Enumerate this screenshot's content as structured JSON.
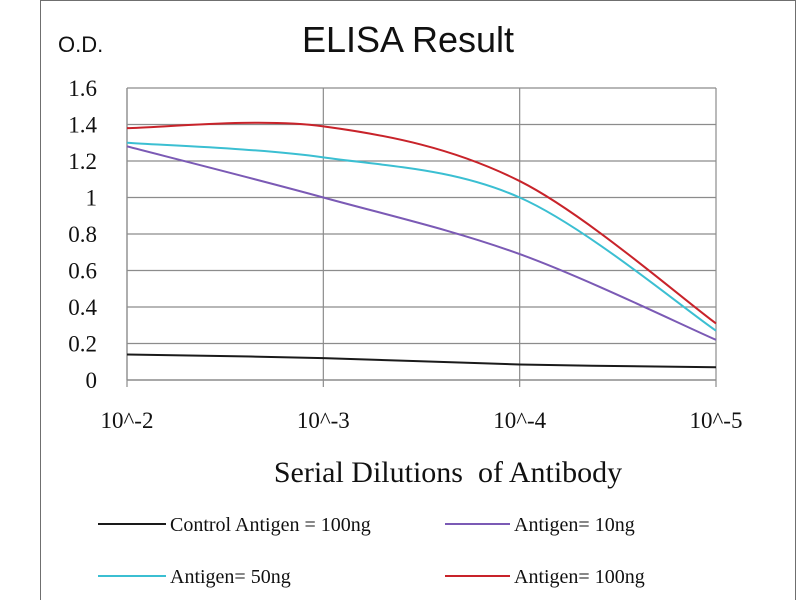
{
  "chart_data": {
    "type": "line",
    "title": "ELISA Result",
    "ylabel": "O.D.",
    "xlabel": "Serial Dilutions  of Antibody",
    "categories": [
      "10^-2",
      "10^-3",
      "10^-4",
      "10^-5"
    ],
    "ylim": [
      0,
      1.6
    ],
    "yticks": [
      "0",
      "0.2",
      "0.4",
      "0.6",
      "0.8",
      "1",
      "1.2",
      "1.4",
      "1.6"
    ],
    "grid": true,
    "legend_position": "bottom",
    "series": [
      {
        "name": "Control Antigen = 100ng",
        "color": "#1a1a1a",
        "values": [
          0.14,
          0.12,
          0.085,
          0.07
        ]
      },
      {
        "name": "Antigen= 10ng",
        "color": "#7b5ab5",
        "values": [
          1.28,
          1.0,
          0.69,
          0.22
        ]
      },
      {
        "name": "Antigen= 50ng",
        "color": "#3bbfd2",
        "values": [
          1.3,
          1.22,
          1.0,
          0.27
        ]
      },
      {
        "name": "Antigen= 100ng",
        "color": "#c8232a",
        "values": [
          1.38,
          1.39,
          1.09,
          0.31
        ]
      }
    ]
  }
}
